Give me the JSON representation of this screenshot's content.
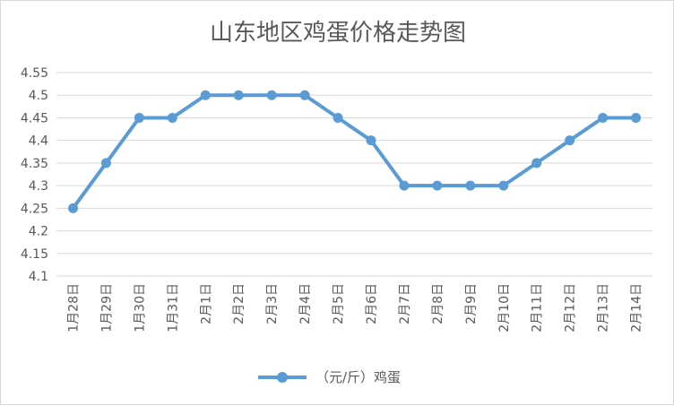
{
  "chart_data": {
    "type": "line",
    "title": "山东地区鸡蛋价格走势图",
    "xlabel": "",
    "ylabel": "",
    "categories": [
      "1月28日",
      "1月29日",
      "1月30日",
      "1月31日",
      "2月1日",
      "2月2日",
      "2月3日",
      "2月4日",
      "2月5日",
      "2月6日",
      "2月7日",
      "2月8日",
      "2月9日",
      "2月10日",
      "2月11日",
      "2月12日",
      "2月13日",
      "2月14日"
    ],
    "series": [
      {
        "name": "（元/斤）鸡蛋",
        "values": [
          4.25,
          4.35,
          4.45,
          4.45,
          4.5,
          4.5,
          4.5,
          4.5,
          4.45,
          4.4,
          4.3,
          4.3,
          4.3,
          4.3,
          4.35,
          4.4,
          4.45,
          4.45
        ]
      }
    ],
    "y_ticks": [
      "4.1",
      "4.15",
      "4.2",
      "4.25",
      "4.3",
      "4.35",
      "4.4",
      "4.45",
      "4.5",
      "4.55"
    ],
    "ylim": [
      4.1,
      4.55
    ],
    "grid": true,
    "legend_position": "bottom",
    "colors": {
      "line": "#5B9BD5",
      "grid": "#d9d9d9",
      "text": "#595959"
    }
  }
}
